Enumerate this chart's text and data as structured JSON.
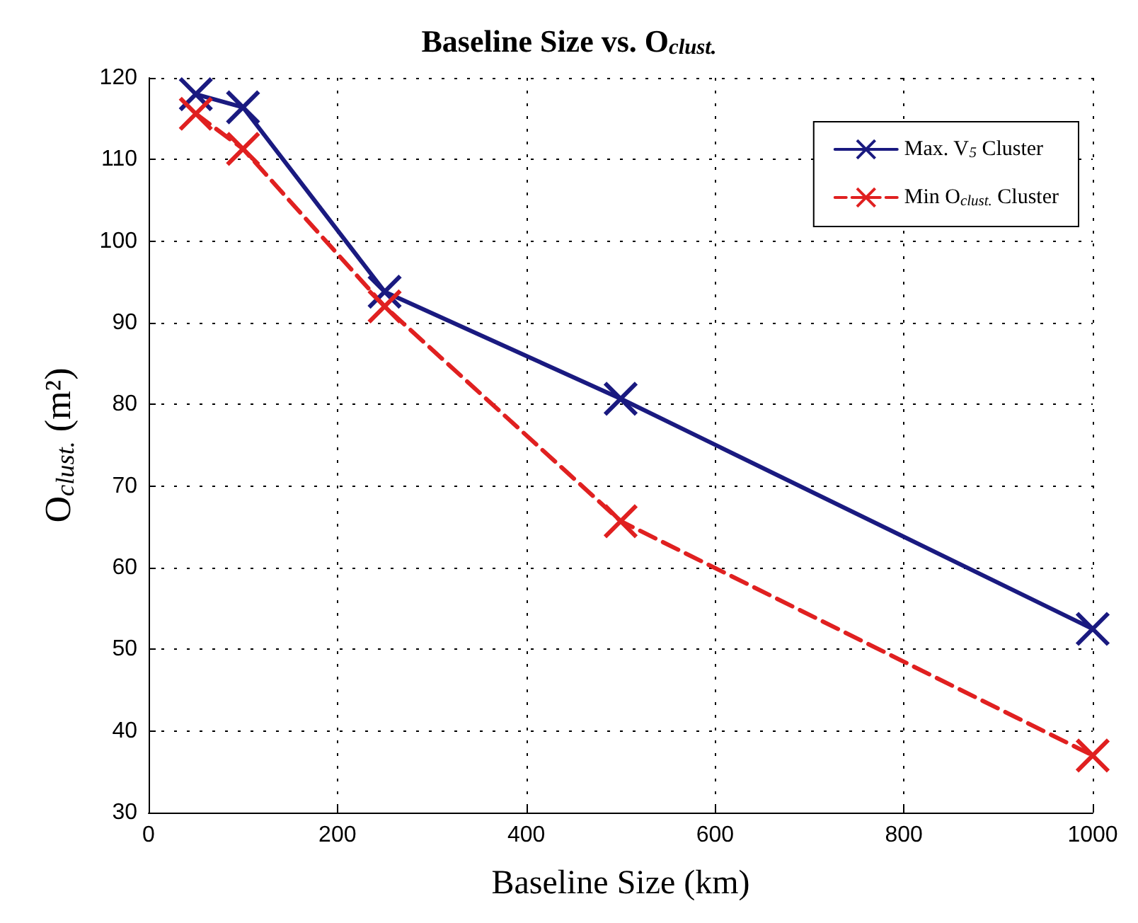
{
  "chart_data": {
    "type": "line",
    "title": "Baseline Size vs. O$_{clust.}$",
    "xlabel": "Baseline Size (km)",
    "ylabel": "O$_{clust.}$ (m²)",
    "x": [
      50,
      100,
      250,
      500,
      1000
    ],
    "series": [
      {
        "name": "Max. V$_{5}$ Cluster",
        "color": "#1a1a80",
        "values": [
          118,
          116.4,
          93.8,
          80.7,
          52.5
        ],
        "line_style": "solid"
      },
      {
        "name": "Min O$_{clust.}$ Cluster",
        "color": "#e02020",
        "values": [
          115.6,
          111.3,
          92,
          65.7,
          37
        ],
        "line_style": "dashed"
      }
    ],
    "xlim": [
      0,
      1000
    ],
    "xticks": [
      0,
      200,
      400,
      600,
      800,
      1000
    ],
    "ylim": [
      30,
      120
    ],
    "yticks": [
      30,
      40,
      50,
      60,
      70,
      80,
      90,
      100,
      110,
      120
    ],
    "grid": true,
    "legend": "top right",
    "marker": "cross"
  }
}
